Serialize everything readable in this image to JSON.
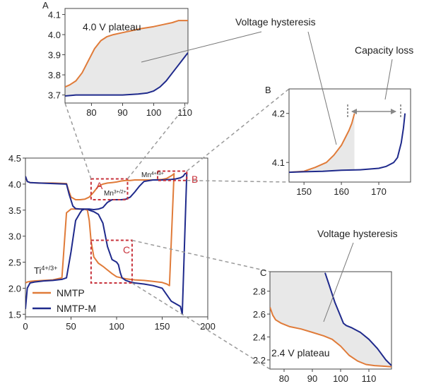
{
  "chart_data": [
    {
      "id": "main",
      "type": "line",
      "title": "",
      "xlabel": "",
      "ylabel": "",
      "xlim": [
        0,
        200
      ],
      "ylim": [
        1.45,
        4.5
      ],
      "x_ticks": [
        0,
        50,
        100,
        150,
        200
      ],
      "y_ticks": [
        1.5,
        2.0,
        2.5,
        3.0,
        3.5,
        4.0,
        4.5
      ],
      "grid": false,
      "legend": {
        "position": "bottom-left",
        "entries": [
          "NMTP",
          "NMTP-M"
        ]
      },
      "series": [
        {
          "name": "NMTP",
          "color": "#E07B39",
          "x": [
            0,
            2,
            5,
            15,
            30,
            45,
            47,
            50,
            55,
            60,
            65,
            70,
            75,
            80,
            85,
            90,
            95,
            100,
            105,
            110,
            115,
            120,
            125,
            130,
            140,
            150,
            155,
            158,
            161,
            163,
            158,
            155,
            150,
            140,
            130,
            120,
            110,
            100,
            95,
            90,
            85,
            80,
            75,
            72,
            70,
            68,
            66,
            64,
            62,
            55,
            50,
            45,
            40,
            30,
            20,
            10,
            5,
            2,
            0
          ],
          "y": [
            4.15,
            4.05,
            4.03,
            4.02,
            4.02,
            4.01,
            3.9,
            3.75,
            3.7,
            3.7,
            3.71,
            3.75,
            3.85,
            3.96,
            4.0,
            4.02,
            4.03,
            4.04,
            4.06,
            4.07,
            4.07,
            4.08,
            4.08,
            4.08,
            4.08,
            4.09,
            4.11,
            4.14,
            4.17,
            4.2,
            2.05,
            2.08,
            2.11,
            2.13,
            2.15,
            2.16,
            2.18,
            2.22,
            2.28,
            2.35,
            2.42,
            2.48,
            2.6,
            2.9,
            3.3,
            3.5,
            3.51,
            3.52,
            3.52,
            3.52,
            3.52,
            3.45,
            2.2,
            2.16,
            2.15,
            2.14,
            2.13,
            2.12,
            2.1
          ]
        },
        {
          "name": "NMTP-M",
          "color": "#1F2A8C",
          "x": [
            0,
            2,
            5,
            15,
            30,
            45,
            48,
            52,
            55,
            60,
            65,
            70,
            75,
            80,
            85,
            90,
            95,
            100,
            105,
            110,
            115,
            120,
            125,
            130,
            140,
            150,
            160,
            165,
            170,
            173,
            175,
            177,
            172,
            170,
            160,
            150,
            140,
            130,
            120,
            115,
            110,
            106,
            104,
            102,
            100,
            95,
            90,
            85,
            80,
            75,
            70,
            68,
            65,
            62,
            60,
            55,
            50,
            45,
            40,
            30,
            20,
            10,
            5,
            2,
            0
          ],
          "y": [
            4.15,
            4.05,
            4.03,
            4.02,
            4.01,
            4.0,
            3.8,
            3.58,
            3.53,
            3.52,
            3.52,
            3.52,
            3.51,
            3.52,
            3.55,
            3.65,
            3.7,
            3.7,
            3.7,
            3.71,
            3.75,
            3.85,
            3.96,
            4.05,
            4.08,
            4.08,
            4.09,
            4.1,
            4.12,
            4.15,
            4.2,
            4.21,
            1.5,
            1.65,
            1.75,
            2.0,
            2.05,
            2.08,
            2.1,
            2.12,
            2.15,
            2.2,
            2.3,
            2.45,
            2.5,
            2.55,
            2.8,
            3.25,
            3.42,
            3.47,
            3.5,
            3.52,
            3.52,
            3.5,
            3.45,
            3.3,
            2.7,
            2.2,
            2.17,
            2.15,
            2.14,
            2.12,
            2.1,
            2.0,
            1.6
          ]
        }
      ],
      "annotations": [
        {
          "text": "Mn",
          "sup": "3+/2+",
          "x": 87,
          "y": 3.85
        },
        {
          "text": "Mn",
          "sup": "4+/3+",
          "x": 122,
          "y": 4.18
        },
        {
          "text": "Ti",
          "sup": "4+/3+",
          "x": 8,
          "y": 2.3
        }
      ],
      "zoom_boxes": [
        {
          "label": "A",
          "x": [
            72,
            112
          ],
          "y": [
            3.7,
            4.1
          ]
        },
        {
          "label": "B",
          "x": [
            145,
            177
          ],
          "y": [
            4.07,
            4.25
          ]
        },
        {
          "label": "C",
          "x": [
            72,
            117
          ],
          "y": [
            2.1,
            2.92
          ]
        }
      ]
    },
    {
      "id": "A",
      "type": "line",
      "panel_label": "A",
      "xlim": [
        71.5,
        111
      ],
      "ylim": [
        3.66,
        4.13
      ],
      "x_ticks": [
        80,
        90,
        100,
        110
      ],
      "y_ticks": [
        3.7,
        3.8,
        3.9,
        4.0,
        4.1
      ],
      "fill_between": true,
      "annotation": "4.0 V plateau",
      "series": [
        {
          "name": "NMTP",
          "color": "#E07B39",
          "x": [
            71.5,
            73,
            75,
            77,
            79,
            81,
            83,
            85,
            87,
            90,
            93,
            96,
            100,
            103,
            106,
            108,
            110,
            111
          ],
          "y": [
            3.74,
            3.75,
            3.77,
            3.81,
            3.87,
            3.93,
            3.97,
            3.99,
            4.0,
            4.01,
            4.02,
            4.03,
            4.04,
            4.05,
            4.06,
            4.07,
            4.07,
            4.07
          ]
        },
        {
          "name": "NMTP-M",
          "color": "#1F2A8C",
          "x": [
            71.5,
            75,
            80,
            85,
            90,
            95,
            98,
            100,
            102,
            104,
            106,
            108,
            110,
            111
          ],
          "y": [
            3.695,
            3.7,
            3.7,
            3.7,
            3.7,
            3.705,
            3.71,
            3.72,
            3.74,
            3.77,
            3.81,
            3.85,
            3.89,
            3.91
          ]
        }
      ]
    },
    {
      "id": "B",
      "type": "line",
      "panel_label": "B",
      "xlim": [
        146,
        178.5
      ],
      "ylim": [
        4.06,
        4.25
      ],
      "x_ticks": [
        150,
        160,
        170
      ],
      "y_ticks": [
        4.1,
        4.2
      ],
      "fill_between": true,
      "series": [
        {
          "name": "NMTP",
          "color": "#E07B39",
          "x": [
            146,
            150,
            153,
            156,
            158,
            160,
            161,
            162,
            162.8,
            163.5
          ],
          "y": [
            4.08,
            4.082,
            4.09,
            4.1,
            4.115,
            4.135,
            4.15,
            4.165,
            4.18,
            4.2
          ]
        },
        {
          "name": "NMTP-M",
          "color": "#1F2A8C",
          "x": [
            146,
            150,
            155,
            160,
            165,
            170,
            172,
            174,
            175,
            176,
            176.6,
            177
          ],
          "y": [
            4.08,
            4.081,
            4.082,
            4.084,
            4.085,
            4.088,
            4.092,
            4.1,
            4.11,
            4.14,
            4.17,
            4.2
          ]
        }
      ]
    },
    {
      "id": "C",
      "type": "line",
      "panel_label": "C",
      "xlim": [
        75,
        118
      ],
      "ylim": [
        2.12,
        2.97
      ],
      "x_ticks": [
        80,
        90,
        100,
        110
      ],
      "y_ticks": [
        2.2,
        2.4,
        2.6,
        2.8
      ],
      "fill_between": true,
      "annotation": "2.4 V plateau",
      "series": [
        {
          "name": "NMTP",
          "color": "#E07B39",
          "x": [
            75,
            76,
            77,
            79,
            82,
            86,
            90,
            94,
            97,
            100,
            103,
            106,
            109,
            112,
            115,
            118
          ],
          "y": [
            2.66,
            2.59,
            2.55,
            2.52,
            2.49,
            2.47,
            2.44,
            2.41,
            2.38,
            2.32,
            2.24,
            2.19,
            2.16,
            2.15,
            2.145,
            2.14
          ]
        },
        {
          "name": "NMTP-M",
          "color": "#1F2A8C",
          "x": [
            94.5,
            96,
            98,
            100,
            101,
            102,
            104,
            107,
            110,
            113,
            116,
            118
          ],
          "y": [
            2.96,
            2.85,
            2.7,
            2.58,
            2.52,
            2.5,
            2.48,
            2.44,
            2.38,
            2.3,
            2.2,
            2.15
          ]
        }
      ]
    }
  ],
  "text_labels": {
    "legend_nmtp": "NMTP",
    "legend_nmtpm": "NMTP-M",
    "voltage_hysteresis_top": "Voltage hysteresis",
    "capacity_loss": "Capacity loss",
    "voltage_hysteresis_bottom": "Voltage hysteresis",
    "plateau_a": "4.0 V plateau",
    "plateau_c": "2.4 V plateau",
    "panel_a": "A",
    "panel_b": "B",
    "panel_c": "C",
    "box_a": "A",
    "box_b": "B",
    "box_c": "C"
  },
  "colors": {
    "nmtp": "#E07B39",
    "nmtpm": "#1F2A8C",
    "zoom_box": "#C8333C",
    "fill": "#E8E8E8",
    "connector": "#9A9A9A"
  }
}
